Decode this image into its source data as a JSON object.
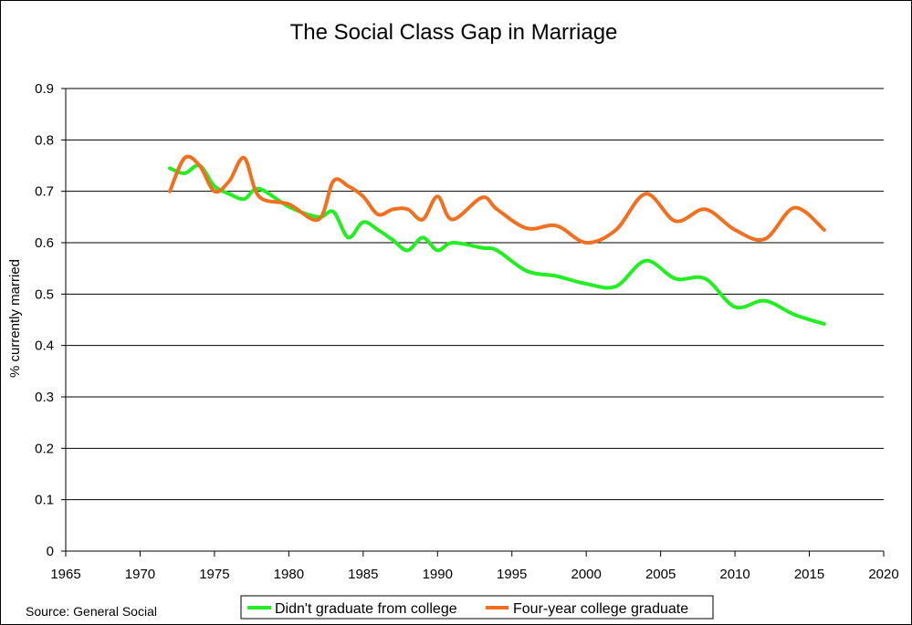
{
  "chart_data": {
    "type": "line",
    "title": "The Social Class Gap in Marriage",
    "xlabel": "",
    "ylabel": "% currently married",
    "xlim": [
      1965,
      2020
    ],
    "ylim": [
      0,
      0.9
    ],
    "x_ticks": [
      "1965",
      "1970",
      "1975",
      "1980",
      "1985",
      "1990",
      "1995",
      "2000",
      "2005",
      "2010",
      "2015",
      "2020"
    ],
    "y_ticks": [
      "0",
      "0.1",
      "0.2",
      "0.3",
      "0.4",
      "0.5",
      "0.6",
      "0.7",
      "0.8",
      "0.9"
    ],
    "x_tick_values": [
      1965,
      1970,
      1975,
      1980,
      1985,
      1990,
      1995,
      2000,
      2005,
      2010,
      2015,
      2020
    ],
    "y_tick_values": [
      0,
      0.1,
      0.2,
      0.3,
      0.4,
      0.5,
      0.6,
      0.7,
      0.8,
      0.9
    ],
    "grid": true,
    "legend_position": "bottom",
    "series": [
      {
        "name": "Didn't graduate from college",
        "color": "#22ee22",
        "x": [
          1972,
          1973,
          1974,
          1975,
          1976,
          1977,
          1978,
          1980,
          1982,
          1983,
          1984,
          1985,
          1986,
          1987,
          1988,
          1989,
          1990,
          1991,
          1993,
          1994,
          1996,
          1998,
          2000,
          2002,
          2004,
          2006,
          2008,
          2010,
          2012,
          2014,
          2016
        ],
        "values": [
          0.745,
          0.735,
          0.75,
          0.71,
          0.695,
          0.685,
          0.705,
          0.67,
          0.65,
          0.66,
          0.61,
          0.64,
          0.625,
          0.605,
          0.585,
          0.61,
          0.585,
          0.6,
          0.59,
          0.585,
          0.545,
          0.535,
          0.52,
          0.515,
          0.565,
          0.53,
          0.53,
          0.475,
          0.487,
          0.46,
          0.442
        ]
      },
      {
        "name": "Four-year college graduate",
        "color": "#f07020",
        "x": [
          1972,
          1973,
          1974,
          1975,
          1976,
          1977,
          1978,
          1980,
          1982,
          1983,
          1984,
          1985,
          1986,
          1987,
          1988,
          1989,
          1990,
          1991,
          1993,
          1994,
          1996,
          1998,
          2000,
          2002,
          2004,
          2006,
          2008,
          2010,
          2012,
          2014,
          2016
        ],
        "values": [
          0.7,
          0.765,
          0.75,
          0.7,
          0.72,
          0.765,
          0.69,
          0.675,
          0.645,
          0.72,
          0.71,
          0.69,
          0.655,
          0.665,
          0.665,
          0.645,
          0.69,
          0.645,
          0.688,
          0.665,
          0.628,
          0.633,
          0.6,
          0.625,
          0.695,
          0.642,
          0.665,
          0.625,
          0.607,
          0.668,
          0.625
        ]
      }
    ]
  },
  "source": "Source: General Social"
}
